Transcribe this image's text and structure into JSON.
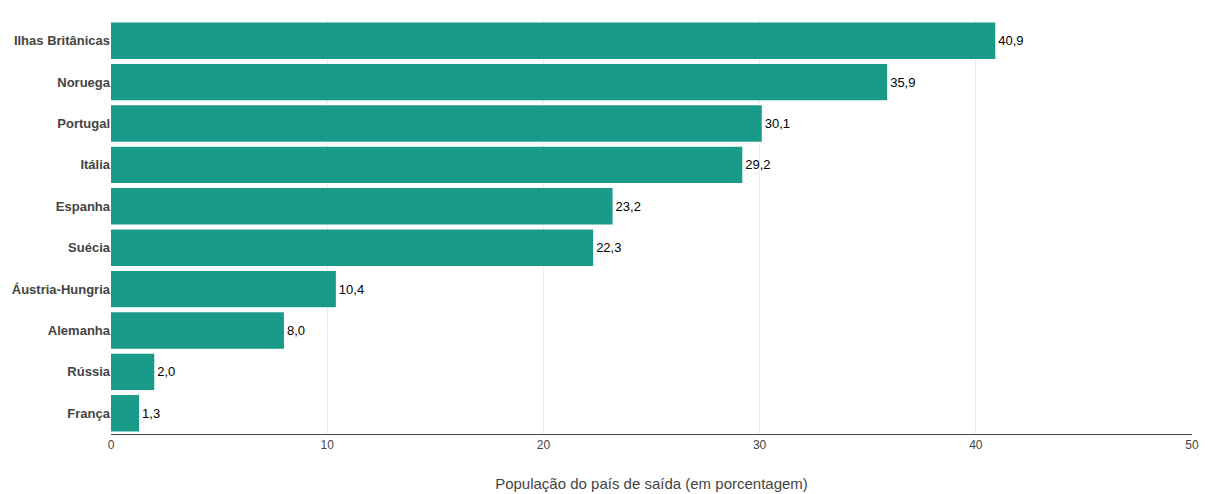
{
  "chart_data": {
    "type": "bar",
    "orientation": "horizontal",
    "categories": [
      "Ilhas Britânicas",
      "Noruega",
      "Portugal",
      "Itália",
      "Espanha",
      "Suécia",
      "Áustria-Hungria",
      "Alemanha",
      "Rússia",
      "França"
    ],
    "values": [
      40.9,
      35.9,
      30.1,
      29.2,
      23.2,
      22.3,
      10.4,
      8.0,
      2.0,
      1.3
    ],
    "value_labels": [
      "40,9",
      "35,9",
      "30,1",
      "29,2",
      "23,2",
      "22,3",
      "10,4",
      "8,0",
      "2,0",
      "1,3"
    ],
    "data_labels": true,
    "color": "#1a9b8a",
    "xlabel": "População do país de saída (em porcentagem)",
    "xlim": [
      0,
      50
    ],
    "xticks": [
      0,
      10,
      20,
      30,
      40,
      50
    ],
    "grid": true
  }
}
